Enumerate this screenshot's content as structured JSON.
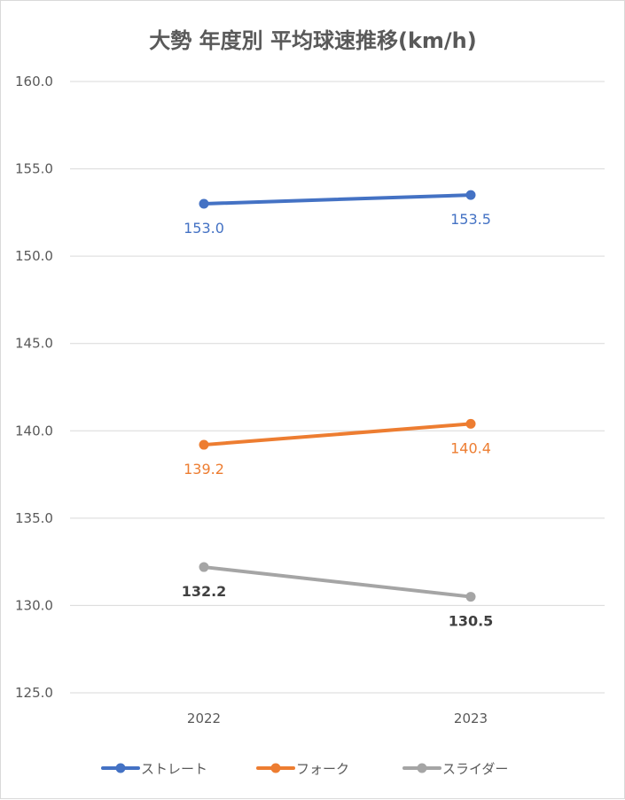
{
  "chart_data": {
    "type": "line",
    "title": "大勢 年度別 平均球速推移(km/h)",
    "categories": [
      "2022",
      "2023"
    ],
    "ylim": [
      125.0,
      160.0
    ],
    "yticks": [
      "125.0",
      "130.0",
      "135.0",
      "140.0",
      "145.0",
      "150.0",
      "155.0",
      "160.0"
    ],
    "grid": true,
    "legend_position": "bottom",
    "series": [
      {
        "name": "ストレート",
        "values": [
          153.0,
          153.5
        ],
        "labels": [
          "153.0",
          "153.5"
        ],
        "color": "#4472C4",
        "label_color": "#4472C4"
      },
      {
        "name": "フォーク",
        "values": [
          139.2,
          140.4
        ],
        "labels": [
          "139.2",
          "140.4"
        ],
        "color": "#ED7D31",
        "label_color": "#ED7D31"
      },
      {
        "name": "スライダー",
        "values": [
          132.2,
          130.5
        ],
        "labels": [
          "132.2",
          "130.5"
        ],
        "color": "#A5A5A5",
        "label_color": "#404040"
      }
    ]
  }
}
